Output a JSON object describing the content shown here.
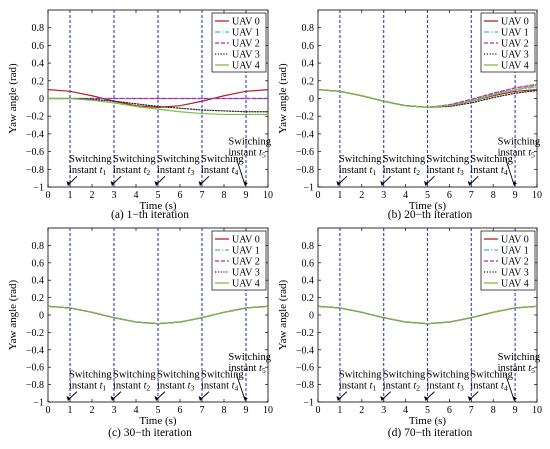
{
  "chart_data": [
    {
      "type": "line",
      "caption": "(a) 1−th iteration",
      "xlabel": "Time (s)",
      "ylabel": "Yaw angle (rad)",
      "xlim": [
        0,
        10
      ],
      "ylim": [
        -1,
        1
      ],
      "xticks": [
        "0",
        "1",
        "2",
        "3",
        "4",
        "5",
        "6",
        "7",
        "8",
        "9",
        "10"
      ],
      "yticks": [
        "0.8",
        "0.6",
        "0.4",
        "0.2",
        "0",
        "−0.2",
        "−0.4",
        "−0.6",
        "−0.8",
        "−1"
      ],
      "legend": "top-right",
      "switching_lines": [
        1,
        3,
        5,
        7,
        9
      ],
      "annotations": [
        {
          "line1": "Switching",
          "line2": "instant",
          "sub": "1"
        },
        {
          "line1": "Switching",
          "line2": "instant",
          "sub": "2"
        },
        {
          "line1": "Switching",
          "line2": "instant",
          "sub": "3"
        },
        {
          "line1": "Switching",
          "line2": "instant",
          "sub": "4"
        },
        {
          "line1": "Switching",
          "line2": "instant",
          "sub": "5"
        }
      ],
      "series": [
        {
          "name": "UAV 0",
          "color": "#b22222",
          "dash": "solid",
          "x": [
            0,
            1,
            2,
            3,
            4,
            5,
            6,
            7,
            8,
            9,
            10
          ],
          "y": [
            0.1,
            0.081,
            0.031,
            -0.031,
            -0.081,
            -0.1,
            -0.081,
            -0.031,
            0.031,
            0.081,
            0.1
          ]
        },
        {
          "name": "UAV 1",
          "color": "#35c0c8",
          "dash": "dashdot",
          "x": [
            0,
            1,
            2,
            3,
            4,
            5,
            6,
            7,
            8,
            9,
            10
          ],
          "y": [
            0.0,
            0.0,
            0.0,
            0.0,
            0.0,
            0.0,
            0.0,
            0.0,
            0.0,
            0.0,
            0.0
          ]
        },
        {
          "name": "UAV 2",
          "color": "#c020c0",
          "dash": "dash",
          "x": [
            0,
            1,
            2,
            3,
            4,
            5,
            6,
            7,
            8,
            9,
            10
          ],
          "y": [
            0.0,
            0.0,
            0.0,
            0.0,
            0.0,
            0.0,
            0.0,
            0.0,
            0.0,
            0.0,
            0.0
          ]
        },
        {
          "name": "UAV 3",
          "color": "#222222",
          "dash": "dot",
          "x": [
            0,
            1,
            2,
            3,
            4,
            5,
            6,
            7,
            8,
            9,
            10
          ],
          "y": [
            0.0,
            0.0,
            -0.01,
            -0.03,
            -0.06,
            -0.09,
            -0.11,
            -0.13,
            -0.14,
            -0.15,
            -0.15
          ]
        },
        {
          "name": "UAV 4",
          "color": "#7cc040",
          "dash": "solid",
          "x": [
            0,
            1,
            2,
            3,
            4,
            5,
            6,
            7,
            8,
            9,
            10
          ],
          "y": [
            0.0,
            0.0,
            -0.02,
            -0.05,
            -0.09,
            -0.12,
            -0.15,
            -0.17,
            -0.18,
            -0.18,
            -0.18
          ]
        }
      ]
    },
    {
      "type": "line",
      "caption": "(b) 20−th iteration",
      "xlabel": "Time (s)",
      "ylabel": "Yaw angle (rad)",
      "xlim": [
        0,
        10
      ],
      "ylim": [
        -1,
        1
      ],
      "xticks": [
        "0",
        "1",
        "2",
        "3",
        "4",
        "5",
        "6",
        "7",
        "8",
        "9",
        "10"
      ],
      "yticks": [
        "0.8",
        "0.6",
        "0.4",
        "0.2",
        "0",
        "−0.2",
        "−0.4",
        "−0.6",
        "−0.8",
        "−1"
      ],
      "legend": "top-right",
      "switching_lines": [
        1,
        3,
        5,
        7,
        9
      ],
      "annotations": [
        {
          "line1": "Switching",
          "line2": "instant",
          "sub": "1"
        },
        {
          "line1": "Switching",
          "line2": "instant",
          "sub": "2"
        },
        {
          "line1": "Switching",
          "line2": "instant",
          "sub": "3"
        },
        {
          "line1": "Switching",
          "line2": "instant",
          "sub": "4"
        },
        {
          "line1": "Switching",
          "line2": "instant",
          "sub": "5"
        }
      ],
      "series": [
        {
          "name": "UAV 0",
          "color": "#b22222",
          "dash": "solid",
          "x": [
            0,
            1,
            2,
            3,
            4,
            5,
            6,
            7,
            8,
            9,
            10
          ],
          "y": [
            0.1,
            0.081,
            0.031,
            -0.031,
            -0.081,
            -0.1,
            -0.081,
            -0.031,
            0.031,
            0.081,
            0.1
          ]
        },
        {
          "name": "UAV 1",
          "color": "#35c0c8",
          "dash": "dashdot",
          "x": [
            0,
            1,
            2,
            3,
            4,
            5,
            6,
            7,
            8,
            9,
            10
          ],
          "y": [
            0.1,
            0.081,
            0.031,
            -0.031,
            -0.081,
            -0.1,
            -0.08,
            -0.02,
            0.05,
            0.1,
            0.13
          ]
        },
        {
          "name": "UAV 2",
          "color": "#c020c0",
          "dash": "dash",
          "x": [
            0,
            1,
            2,
            3,
            4,
            5,
            6,
            7,
            8,
            9,
            10
          ],
          "y": [
            0.1,
            0.081,
            0.031,
            -0.031,
            -0.081,
            -0.1,
            -0.07,
            -0.01,
            0.06,
            0.12,
            0.16
          ]
        },
        {
          "name": "UAV 3",
          "color": "#222222",
          "dash": "dot",
          "x": [
            0,
            1,
            2,
            3,
            4,
            5,
            6,
            7,
            8,
            9,
            10
          ],
          "y": [
            0.1,
            0.081,
            0.031,
            -0.031,
            -0.081,
            -0.1,
            -0.09,
            -0.05,
            0.01,
            0.06,
            0.09
          ]
        },
        {
          "name": "UAV 4",
          "color": "#7cc040",
          "dash": "solid",
          "x": [
            0,
            1,
            2,
            3,
            4,
            5,
            6,
            7,
            8,
            9,
            10
          ],
          "y": [
            0.1,
            0.081,
            0.031,
            -0.031,
            -0.081,
            -0.1,
            -0.08,
            -0.03,
            0.04,
            0.1,
            0.15
          ]
        }
      ]
    },
    {
      "type": "line",
      "caption": "(c) 30−th iteration",
      "xlabel": "Time (s)",
      "ylabel": "Yaw angle (rad)",
      "xlim": [
        0,
        10
      ],
      "ylim": [
        -1,
        1
      ],
      "xticks": [
        "0",
        "1",
        "2",
        "3",
        "4",
        "5",
        "6",
        "7",
        "8",
        "9",
        "10"
      ],
      "yticks": [
        "0.8",
        "0.6",
        "0.4",
        "0.2",
        "0",
        "−0.2",
        "−0.4",
        "−0.6",
        "−0.8",
        "−1"
      ],
      "legend": "top-right",
      "switching_lines": [
        1,
        3,
        5,
        7,
        9
      ],
      "annotations": [
        {
          "line1": "Switching",
          "line2": "instant",
          "sub": "1"
        },
        {
          "line1": "Switching",
          "line2": "instant",
          "sub": "2"
        },
        {
          "line1": "Switching",
          "line2": "instant",
          "sub": "3"
        },
        {
          "line1": "Switching",
          "line2": "instant",
          "sub": "4"
        },
        {
          "line1": "Switching",
          "line2": "instant",
          "sub": "5"
        }
      ],
      "series": [
        {
          "name": "UAV 0",
          "color": "#b22222",
          "dash": "solid",
          "x": [
            0,
            1,
            2,
            3,
            4,
            5,
            6,
            7,
            8,
            9,
            10
          ],
          "y": [
            0.1,
            0.081,
            0.031,
            -0.031,
            -0.081,
            -0.1,
            -0.081,
            -0.031,
            0.031,
            0.081,
            0.1
          ]
        },
        {
          "name": "UAV 1",
          "color": "#35c0c8",
          "dash": "dashdot",
          "x": [
            0,
            1,
            2,
            3,
            4,
            5,
            6,
            7,
            8,
            9,
            10
          ],
          "y": [
            0.1,
            0.081,
            0.031,
            -0.031,
            -0.081,
            -0.1,
            -0.081,
            -0.031,
            0.031,
            0.081,
            0.1
          ]
        },
        {
          "name": "UAV 2",
          "color": "#c020c0",
          "dash": "dash",
          "x": [
            0,
            1,
            2,
            3,
            4,
            5,
            6,
            7,
            8,
            9,
            10
          ],
          "y": [
            0.1,
            0.081,
            0.031,
            -0.031,
            -0.081,
            -0.1,
            -0.081,
            -0.031,
            0.031,
            0.081,
            0.1
          ]
        },
        {
          "name": "UAV 3",
          "color": "#222222",
          "dash": "dot",
          "x": [
            0,
            1,
            2,
            3,
            4,
            5,
            6,
            7,
            8,
            9,
            10
          ],
          "y": [
            0.1,
            0.081,
            0.031,
            -0.031,
            -0.081,
            -0.1,
            -0.081,
            -0.031,
            0.031,
            0.081,
            0.1
          ]
        },
        {
          "name": "UAV 4",
          "color": "#7cc040",
          "dash": "solid",
          "x": [
            0,
            1,
            2,
            3,
            4,
            5,
            6,
            7,
            8,
            9,
            10
          ],
          "y": [
            0.1,
            0.081,
            0.031,
            -0.031,
            -0.081,
            -0.1,
            -0.081,
            -0.031,
            0.031,
            0.081,
            0.1
          ]
        }
      ]
    },
    {
      "type": "line",
      "caption": "(d) 70−th iteration",
      "xlabel": "Time (s)",
      "ylabel": "Yaw angle (rad)",
      "xlim": [
        0,
        10
      ],
      "ylim": [
        -1,
        1
      ],
      "xticks": [
        "0",
        "1",
        "2",
        "3",
        "4",
        "5",
        "6",
        "7",
        "8",
        "9",
        "10"
      ],
      "yticks": [
        "0.8",
        "0.6",
        "0.4",
        "0.2",
        "0",
        "−0.2",
        "−0.4",
        "−0.6",
        "−0.8",
        "−1"
      ],
      "legend": "top-right",
      "switching_lines": [
        1,
        3,
        5,
        7,
        9
      ],
      "annotations": [
        {
          "line1": "Switching",
          "line2": "instant",
          "sub": "1"
        },
        {
          "line1": "Switching",
          "line2": "instant",
          "sub": "2"
        },
        {
          "line1": "Switching",
          "line2": "instant",
          "sub": "3"
        },
        {
          "line1": "Switching",
          "line2": "instant",
          "sub": "4"
        },
        {
          "line1": "Switching",
          "line2": "instant",
          "sub": "5"
        }
      ],
      "series": [
        {
          "name": "UAV 0",
          "color": "#b22222",
          "dash": "solid",
          "x": [
            0,
            1,
            2,
            3,
            4,
            5,
            6,
            7,
            8,
            9,
            10
          ],
          "y": [
            0.1,
            0.081,
            0.031,
            -0.031,
            -0.081,
            -0.1,
            -0.081,
            -0.031,
            0.031,
            0.081,
            0.1
          ]
        },
        {
          "name": "UAV 1",
          "color": "#35c0c8",
          "dash": "dashdot",
          "x": [
            0,
            1,
            2,
            3,
            4,
            5,
            6,
            7,
            8,
            9,
            10
          ],
          "y": [
            0.1,
            0.081,
            0.031,
            -0.031,
            -0.081,
            -0.1,
            -0.081,
            -0.031,
            0.031,
            0.081,
            0.1
          ]
        },
        {
          "name": "UAV 2",
          "color": "#c020c0",
          "dash": "dash",
          "x": [
            0,
            1,
            2,
            3,
            4,
            5,
            6,
            7,
            8,
            9,
            10
          ],
          "y": [
            0.1,
            0.081,
            0.031,
            -0.031,
            -0.081,
            -0.1,
            -0.081,
            -0.031,
            0.031,
            0.081,
            0.1
          ]
        },
        {
          "name": "UAV 3",
          "color": "#222222",
          "dash": "dot",
          "x": [
            0,
            1,
            2,
            3,
            4,
            5,
            6,
            7,
            8,
            9,
            10
          ],
          "y": [
            0.1,
            0.081,
            0.031,
            -0.031,
            -0.081,
            -0.1,
            -0.081,
            -0.031,
            0.031,
            0.081,
            0.1
          ]
        },
        {
          "name": "UAV 4",
          "color": "#7cc040",
          "dash": "solid",
          "x": [
            0,
            1,
            2,
            3,
            4,
            5,
            6,
            7,
            8,
            9,
            10
          ],
          "y": [
            0.1,
            0.081,
            0.031,
            -0.031,
            -0.081,
            -0.1,
            -0.081,
            -0.031,
            0.031,
            0.081,
            0.1
          ]
        }
      ]
    }
  ]
}
